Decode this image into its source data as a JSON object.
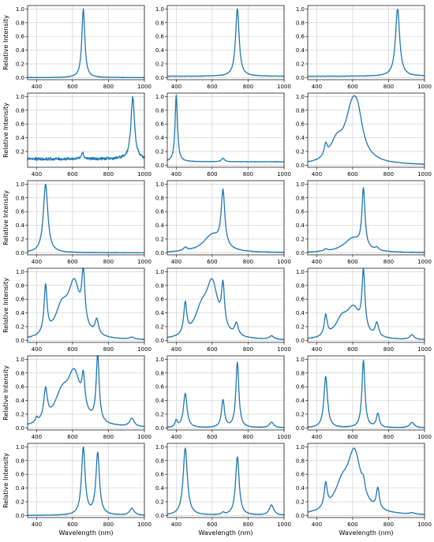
{
  "chart_data": {
    "type": "line",
    "layout": "6x3 grid of small multiples",
    "grid": true,
    "series_color": "#1f77b4",
    "xlabel": "Wavelength (nm)",
    "ylabel": "Relative Intensity",
    "xlim": [
      350,
      1000
    ],
    "ylim": [
      0,
      1.05
    ],
    "xticks": [
      400,
      600,
      800,
      1000
    ],
    "yticks": [
      0.0,
      0.2,
      0.4,
      0.6,
      0.8,
      1.0
    ],
    "panels": [
      {
        "baseline": 0.0,
        "peaks": [
          [
            660,
            1.0,
            10
          ]
        ]
      },
      {
        "baseline": 0.02,
        "peaks": [
          [
            740,
            0.98,
            12
          ]
        ]
      },
      {
        "baseline": 0.02,
        "peaks": [
          [
            850,
            0.98,
            14
          ]
        ]
      },
      {
        "baseline": 0.09,
        "noise": 0.02,
        "ylim": [
          0.0,
          1.05
        ],
        "yticks": [
          0.2,
          0.4,
          0.6,
          0.8,
          1.0
        ],
        "peaks": [
          [
            655,
            0.1,
            8
          ],
          [
            935,
            0.9,
            12
          ]
        ]
      },
      {
        "baseline": 0.05,
        "peaks": [
          [
            400,
            0.97,
            8
          ],
          [
            660,
            0.05,
            10
          ]
        ]
      },
      {
        "baseline": 0.0,
        "peaks": [
          [
            450,
            0.17,
            10
          ],
          [
            510,
            0.25,
            40
          ],
          [
            600,
            0.8,
            50
          ],
          [
            630,
            0.3,
            30
          ]
        ]
      },
      {
        "baseline": 0.0,
        "peaks": [
          [
            450,
            1.0,
            15
          ]
        ]
      },
      {
        "baseline": 0.0,
        "peaks": [
          [
            450,
            0.05,
            12
          ],
          [
            600,
            0.25,
            60
          ],
          [
            660,
            0.8,
            12
          ]
        ]
      },
      {
        "baseline": 0.0,
        "peaks": [
          [
            450,
            0.03,
            12
          ],
          [
            600,
            0.2,
            60
          ],
          [
            660,
            0.85,
            10
          ],
          [
            735,
            0.04,
            12
          ]
        ]
      },
      {
        "baseline": 0.0,
        "peaks": [
          [
            450,
            0.7,
            10
          ],
          [
            540,
            0.4,
            45
          ],
          [
            610,
            0.75,
            40
          ],
          [
            660,
            0.75,
            10
          ],
          [
            735,
            0.22,
            12
          ],
          [
            930,
            0.03,
            15
          ]
        ]
      },
      {
        "baseline": 0.0,
        "peaks": [
          [
            450,
            0.45,
            10
          ],
          [
            540,
            0.35,
            45
          ],
          [
            600,
            0.75,
            40
          ],
          [
            660,
            0.6,
            10
          ],
          [
            735,
            0.18,
            12
          ],
          [
            930,
            0.05,
            15
          ]
        ]
      },
      {
        "baseline": 0.0,
        "peaks": [
          [
            450,
            0.3,
            10
          ],
          [
            540,
            0.25,
            45
          ],
          [
            605,
            0.4,
            45
          ],
          [
            660,
            0.85,
            10
          ],
          [
            735,
            0.2,
            12
          ],
          [
            930,
            0.07,
            15
          ]
        ]
      },
      {
        "baseline": 0.0,
        "peaks": [
          [
            400,
            0.07,
            8
          ],
          [
            450,
            0.45,
            12
          ],
          [
            540,
            0.4,
            50
          ],
          [
            610,
            0.7,
            45
          ],
          [
            660,
            0.45,
            10
          ],
          [
            740,
            0.98,
            10
          ],
          [
            930,
            0.12,
            15
          ]
        ]
      },
      {
        "baseline": 0.0,
        "peaks": [
          [
            400,
            0.1,
            8
          ],
          [
            450,
            0.5,
            12
          ],
          [
            660,
            0.4,
            10
          ],
          [
            740,
            0.95,
            10
          ],
          [
            930,
            0.08,
            15
          ]
        ]
      },
      {
        "baseline": 0.0,
        "peaks": [
          [
            450,
            0.75,
            12
          ],
          [
            660,
            0.98,
            10
          ],
          [
            740,
            0.2,
            10
          ],
          [
            930,
            0.08,
            15
          ]
        ]
      },
      {
        "baseline": 0.0,
        "peaks": [
          [
            660,
            0.98,
            12
          ],
          [
            740,
            0.9,
            12
          ],
          [
            930,
            0.1,
            15
          ]
        ]
      },
      {
        "baseline": 0.0,
        "peaks": [
          [
            450,
            0.98,
            14
          ],
          [
            660,
            0.03,
            10
          ],
          [
            740,
            0.85,
            12
          ],
          [
            930,
            0.15,
            15
          ]
        ]
      },
      {
        "baseline": 0.0,
        "peaks": [
          [
            450,
            0.35,
            10
          ],
          [
            540,
            0.35,
            50
          ],
          [
            610,
            0.85,
            45
          ],
          [
            660,
            0.15,
            10
          ],
          [
            740,
            0.3,
            10
          ],
          [
            930,
            0.02,
            15
          ]
        ]
      }
    ]
  }
}
